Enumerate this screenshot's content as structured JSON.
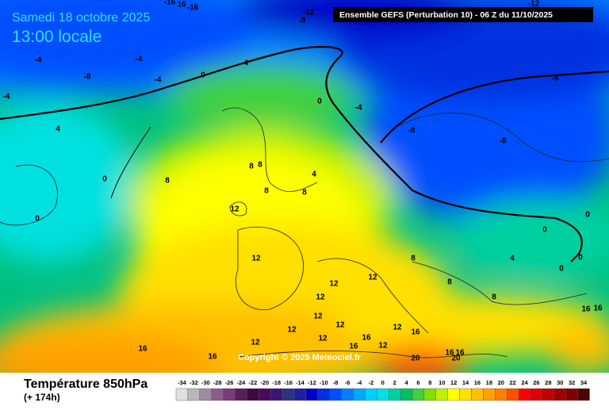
{
  "header": {
    "date": "Samedi 18 octobre 2025",
    "time": "13:00 locale",
    "run": "Ensemble GEFS  (Perturbation 10)  -  06 Z du 11/10/2025"
  },
  "copyright": "Copyright © 2025 Meteociel.fr",
  "footer": {
    "title": "Température 850hPa",
    "lead": "(+ 174h)"
  },
  "legend": [
    {
      "value": -34,
      "color": "#e0e0e0"
    },
    {
      "value": -32,
      "color": "#b8b8b8"
    },
    {
      "value": -30,
      "color": "#a08ca0"
    },
    {
      "value": -28,
      "color": "#8c5a8c"
    },
    {
      "value": -26,
      "color": "#783c78"
    },
    {
      "value": -24,
      "color": "#5a1e5a"
    },
    {
      "value": -22,
      "color": "#3c0a3c"
    },
    {
      "value": -20,
      "color": "#4a0a5a"
    },
    {
      "value": -18,
      "color": "#3c1478"
    },
    {
      "value": -16,
      "color": "#303080"
    },
    {
      "value": -14,
      "color": "#20209e"
    },
    {
      "value": -12,
      "color": "#0000c8"
    },
    {
      "value": -10,
      "color": "#0030e0"
    },
    {
      "value": -8,
      "color": "#0050ff"
    },
    {
      "value": -6,
      "color": "#0080ff"
    },
    {
      "value": -4,
      "color": "#00a8ff"
    },
    {
      "value": -2,
      "color": "#00d0ff"
    },
    {
      "value": 0,
      "color": "#00e0e0"
    },
    {
      "value": 2,
      "color": "#00d0a0"
    },
    {
      "value": 4,
      "color": "#00c060"
    },
    {
      "value": 6,
      "color": "#40d040"
    },
    {
      "value": 8,
      "color": "#80e000"
    },
    {
      "value": 10,
      "color": "#c0f000"
    },
    {
      "value": 12,
      "color": "#ffff00"
    },
    {
      "value": 14,
      "color": "#ffe000"
    },
    {
      "value": 16,
      "color": "#ffc000"
    },
    {
      "value": 18,
      "color": "#ffa000"
    },
    {
      "value": 20,
      "color": "#ff8000"
    },
    {
      "value": 22,
      "color": "#ff5000"
    },
    {
      "value": 24,
      "color": "#ff0000"
    },
    {
      "value": 26,
      "color": "#e00000"
    },
    {
      "value": 28,
      "color": "#c00000"
    },
    {
      "value": 30,
      "color": "#a00000"
    },
    {
      "value": 32,
      "color": "#800000"
    },
    {
      "value": 34,
      "color": "#500000"
    }
  ],
  "map_labels": [
    "-16",
    "16",
    "-16",
    "-12",
    "-8",
    "-12",
    "-4",
    "-4",
    "-8",
    "-4",
    "0",
    "4",
    "-4",
    "0",
    "-4",
    "-8",
    "4",
    "-8",
    "-8",
    "0",
    "8",
    "8",
    "8",
    "4",
    "8",
    "8",
    "12",
    "0",
    "0",
    "0",
    "12",
    "8",
    "4",
    "0",
    "0",
    "12",
    "12",
    "8",
    "12",
    "8",
    "16",
    "16",
    "12",
    "12",
    "12",
    "16",
    "12",
    "16",
    "12",
    "12",
    "16",
    "16",
    "12",
    "16",
    "16",
    "16",
    "20",
    "20"
  ]
}
